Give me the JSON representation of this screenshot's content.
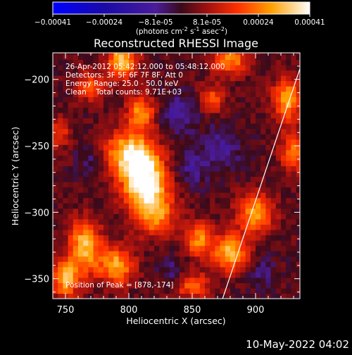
{
  "chart_data": {
    "type": "heatmap",
    "title": "Reconstructed RHESSI Image",
    "xlabel": "Heliocentric X (arcsec)",
    "ylabel": "Heliocentric Y (arcsec)",
    "xlim": [
      740,
      935
    ],
    "ylim": [
      -365,
      -180
    ],
    "xticks": [
      750,
      800,
      850,
      900
    ],
    "yticks": [
      -200,
      -250,
      -300,
      -350
    ],
    "colorbar": {
      "ticks": [
        "-0.00041",
        "-0.00024",
        "-8.1e-05",
        "8.1e-05",
        "0.00024",
        "0.00041"
      ],
      "units_line": "(photons cm",
      "units_exp1": "-2",
      "units_mid": " s",
      "units_exp2": "-1",
      "units_end": " asec",
      "units_exp3": "-2",
      "units_close": ")",
      "range": [
        -0.00041,
        0.00041
      ]
    },
    "annotations": [
      "26-Apr-2012 05:42:12.000 to 05:48:12.000",
      "Detectors: 3F 5F 6F 7F 8F, Att 0",
      "Energy Range: 25.0 - 50.0 keV",
      "Clean    Total counts: 9.71E+03"
    ],
    "peak_label": "Position of Peak = [878,-174]",
    "peak": [
      878,
      -174
    ],
    "blobs": [
      {
        "x": 812,
        "y": -275,
        "amp": 0.00041,
        "sx": 12,
        "sy": 14
      },
      {
        "x": 800,
        "y": -255,
        "amp": 0.0003,
        "sx": 14,
        "sy": 12
      },
      {
        "x": 820,
        "y": -300,
        "amp": 0.00026,
        "sx": 12,
        "sy": 12
      },
      {
        "x": 795,
        "y": -185,
        "amp": 0.00032,
        "sx": 8,
        "sy": 10
      },
      {
        "x": 810,
        "y": -225,
        "amp": 0.00026,
        "sx": 8,
        "sy": 9
      },
      {
        "x": 765,
        "y": -325,
        "amp": 0.0003,
        "sx": 9,
        "sy": 14
      },
      {
        "x": 750,
        "y": -350,
        "amp": 0.00028,
        "sx": 8,
        "sy": 10
      },
      {
        "x": 790,
        "y": -340,
        "amp": 0.00028,
        "sx": 10,
        "sy": 10
      },
      {
        "x": 880,
        "y": -185,
        "amp": 0.00024,
        "sx": 10,
        "sy": 8
      },
      {
        "x": 865,
        "y": -215,
        "amp": 0.0002,
        "sx": 7,
        "sy": 7
      },
      {
        "x": 925,
        "y": -215,
        "amp": 0.00028,
        "sx": 8,
        "sy": 12
      },
      {
        "x": 930,
        "y": -255,
        "amp": 0.00024,
        "sx": 7,
        "sy": 10
      },
      {
        "x": 900,
        "y": -300,
        "amp": 0.00028,
        "sx": 10,
        "sy": 10
      },
      {
        "x": 880,
        "y": -330,
        "amp": 0.0003,
        "sx": 10,
        "sy": 10
      },
      {
        "x": 855,
        "y": -320,
        "amp": 0.00024,
        "sx": 8,
        "sy": 9
      },
      {
        "x": 770,
        "y": -205,
        "amp": 0.00018,
        "sx": 8,
        "sy": 8
      },
      {
        "x": 850,
        "y": -355,
        "amp": 0.0002,
        "sx": 10,
        "sy": 7
      },
      {
        "x": 745,
        "y": -240,
        "amp": 0.00015,
        "sx": 6,
        "sy": 8
      },
      {
        "x": 850,
        "y": -265,
        "amp": -0.0001,
        "sx": 10,
        "sy": 10
      },
      {
        "x": 840,
        "y": -225,
        "amp": -0.00012,
        "sx": 12,
        "sy": 10
      },
      {
        "x": 875,
        "y": -250,
        "amp": -0.0001,
        "sx": 10,
        "sy": 12
      },
      {
        "x": 770,
        "y": -260,
        "amp": -8e-05,
        "sx": 8,
        "sy": 10
      },
      {
        "x": 835,
        "y": -345,
        "amp": -8e-05,
        "sx": 8,
        "sy": 8
      },
      {
        "x": 905,
        "y": -345,
        "amp": -8e-05,
        "sx": 8,
        "sy": 8
      }
    ],
    "limb_line": [
      [
        874,
        -365
      ],
      [
        935,
        -192
      ]
    ]
  },
  "footer_date": "10-May-2022 04:02"
}
